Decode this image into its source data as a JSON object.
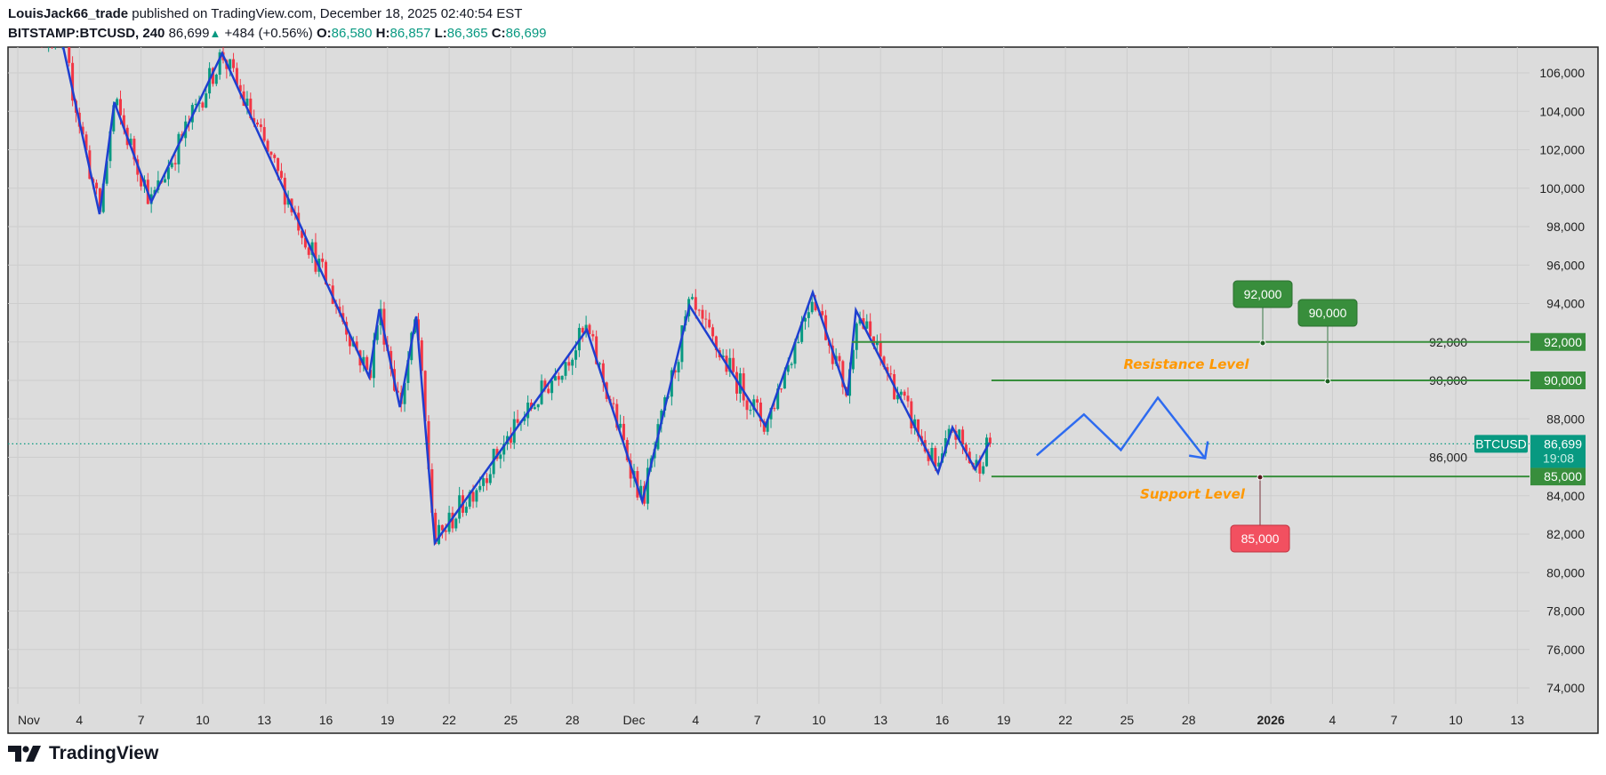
{
  "header": {
    "author": "LouisJack66_trade",
    "published_text": "published on TradingView.com, December 18, 2025 02:40:54 EST",
    "symbol": "BITSTAMP:BTCUSD, 240",
    "last": "86,699",
    "change": "+484 (+0.56%)",
    "o_label": "O:",
    "o": "86,580",
    "h_label": "H:",
    "h": "86,857",
    "l_label": "L:",
    "l": "86,365",
    "c_label": "C:",
    "c": "86,699"
  },
  "colors": {
    "up": "#089981",
    "down": "#f23645",
    "zigzag": "#1e3fd0",
    "projection": "#2e6bf0",
    "level": "#388e3c",
    "label_orange": "#ff9800",
    "support_box": "#f25060",
    "bg": "#dcdcdc",
    "grid": "#cdcdcd"
  },
  "chart_data": {
    "type": "candlestick",
    "symbol": "BTCUSD",
    "interval": "240",
    "ylim": [
      73000,
      107500
    ],
    "y_ticks": [
      "106,000",
      "104,000",
      "102,000",
      "100,000",
      "98,000",
      "96,000",
      "94,000",
      "92,000",
      "90,000",
      "88,000",
      "86,000",
      "84,000",
      "82,000",
      "80,000",
      "78,000",
      "76,000",
      "74,000"
    ],
    "y_tick_values": [
      106000,
      104000,
      102000,
      100000,
      98000,
      96000,
      94000,
      92000,
      90000,
      88000,
      86000,
      84000,
      82000,
      80000,
      78000,
      76000,
      74000
    ],
    "x_ticks": [
      {
        "label": "Nov",
        "day": 1,
        "bold": false
      },
      {
        "label": "4",
        "day": 4
      },
      {
        "label": "7",
        "day": 7
      },
      {
        "label": "10",
        "day": 10
      },
      {
        "label": "13",
        "day": 13
      },
      {
        "label": "16",
        "day": 16
      },
      {
        "label": "19",
        "day": 19
      },
      {
        "label": "22",
        "day": 22
      },
      {
        "label": "25",
        "day": 25
      },
      {
        "label": "28",
        "day": 28
      },
      {
        "label": "Dec",
        "day": 31
      },
      {
        "label": "4",
        "day": 34
      },
      {
        "label": "7",
        "day": 37
      },
      {
        "label": "10",
        "day": 40
      },
      {
        "label": "13",
        "day": 43
      },
      {
        "label": "16",
        "day": 46
      },
      {
        "label": "19",
        "day": 49
      },
      {
        "label": "22",
        "day": 52
      },
      {
        "label": "25",
        "day": 55
      },
      {
        "label": "28",
        "day": 58
      },
      {
        "label": "2026",
        "day": 62,
        "bold": true
      },
      {
        "label": "4",
        "day": 65
      },
      {
        "label": "7",
        "day": 68
      },
      {
        "label": "10",
        "day": 71
      },
      {
        "label": "13",
        "day": 74
      }
    ],
    "zigzag_pivots": [
      {
        "day": 1.5,
        "price": 108600
      },
      {
        "day": 3.2,
        "price": 107400
      },
      {
        "day": 4.98,
        "price": 98650
      },
      {
        "day": 5.7,
        "price": 104470
      },
      {
        "day": 7.5,
        "price": 99290
      },
      {
        "day": 10.95,
        "price": 107020
      },
      {
        "day": 18.1,
        "price": 90190
      },
      {
        "day": 18.6,
        "price": 93700
      },
      {
        "day": 19.6,
        "price": 88610
      },
      {
        "day": 20.4,
        "price": 93330
      },
      {
        "day": 21.3,
        "price": 81540
      },
      {
        "day": 28.7,
        "price": 92640
      },
      {
        "day": 31.4,
        "price": 83710
      },
      {
        "day": 33.7,
        "price": 93880
      },
      {
        "day": 37.4,
        "price": 87640
      },
      {
        "day": 39.7,
        "price": 94580
      },
      {
        "day": 41.4,
        "price": 89220
      },
      {
        "day": 41.8,
        "price": 93650
      },
      {
        "day": 45.8,
        "price": 85190
      },
      {
        "day": 46.5,
        "price": 87550
      },
      {
        "day": 47.6,
        "price": 85380
      },
      {
        "day": 48.3,
        "price": 86760
      }
    ],
    "projection_path": [
      {
        "day": 50.6,
        "price": 86100
      },
      {
        "day": 52.9,
        "price": 88230
      },
      {
        "day": 54.7,
        "price": 86380
      },
      {
        "day": 56.5,
        "price": 89100
      },
      {
        "day": 58.8,
        "price": 85950
      }
    ],
    "levels": [
      {
        "name": "Resistance 92,000",
        "price": 92000,
        "from_day": 41.6
      },
      {
        "name": "Resistance 90,000",
        "price": 90000,
        "from_day": 48.4
      },
      {
        "name": "Support 85,000",
        "price": 85000,
        "from_day": 48.4
      }
    ],
    "callouts": [
      {
        "text": "92,000",
        "price": 92000,
        "day": 61.6,
        "color": "#388e3c"
      },
      {
        "text": "90,000",
        "price": 90000,
        "day": 64.8,
        "color": "#388e3c"
      },
      {
        "text": "85,000",
        "price": 85000,
        "day": 61.4,
        "color": "#f25060"
      }
    ],
    "annotations": {
      "resistance": "Resistance Level",
      "support": "Support Level"
    },
    "price_tags": [
      {
        "text": "92,000",
        "price": 92000,
        "color": "#388e3c"
      },
      {
        "text": "90,000",
        "price": 90000,
        "color": "#388e3c"
      },
      {
        "text": "85,000",
        "price": 85000,
        "color": "#388e3c"
      }
    ],
    "last_price": {
      "value": 86699,
      "text": "86,699",
      "countdown": "19:08",
      "symbol_tag": "BTCUSD"
    },
    "last_candle_day": 48.4
  },
  "watermark": "TradingView"
}
